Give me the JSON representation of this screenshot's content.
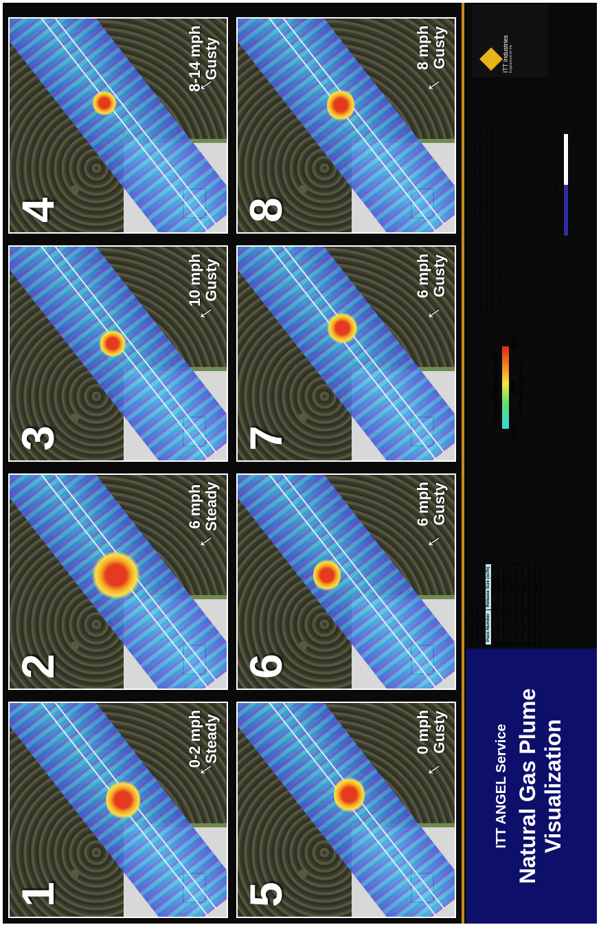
{
  "panels": [
    {
      "number": "1",
      "wind_speed": "0-2 mph",
      "wind_type": "Steady"
    },
    {
      "number": "2",
      "wind_speed": "6 mph",
      "wind_type": "Steady"
    },
    {
      "number": "3",
      "wind_speed": "10 mph",
      "wind_type": "Gusty"
    },
    {
      "number": "4",
      "wind_speed": "8-14 mph",
      "wind_type": "Gusty"
    },
    {
      "number": "5",
      "wind_speed": "0 mph",
      "wind_type": "Gusty"
    },
    {
      "number": "6",
      "wind_speed": "6 mph",
      "wind_type": "Gusty"
    },
    {
      "number": "7",
      "wind_speed": "6 mph",
      "wind_type": "Gusty"
    },
    {
      "number": "8",
      "wind_speed": "8 mph",
      "wind_type": "Gusty"
    }
  ],
  "title": {
    "subtitle": "ITT ANGEL Service",
    "main": "Natural Gas Plume Visualization"
  },
  "flight_info": {
    "speed": "Flight Speed:  150 mph",
    "altitude": "Altitude:  1000' AGL",
    "table": {
      "headers": [
        "Pass Number",
        "Release Size (scfh)"
      ],
      "rows": [
        [
          "1",
          "5600"
        ],
        [
          "2",
          "5600"
        ],
        [
          "3",
          "5600"
        ],
        [
          "4",
          "5600"
        ],
        [
          "5",
          "3720"
        ],
        [
          "6",
          "3720"
        ],
        [
          "7",
          "3720"
        ],
        [
          "8",
          "4480"
        ]
      ]
    }
  },
  "legend": {
    "title": "Concentration Length",
    "ticks": [
      "2000",
      "3000",
      "4000"
    ],
    "unit": "methane (ppm-m)",
    "colors": [
      "#3cd3e6",
      "#5fe06a",
      "#f7e341",
      "#f28a25",
      "#e2231a"
    ]
  },
  "description": "The ANGEL Service DIAL sensor uses LIDAR to detect the possible presence of natural gas. The images above illustrate the sensor's ability to discriminate gas plumes under a variety of wind conditions. ANGEL analysts use a variety of GIS and image-processing tools to generate the final visualizations from the DIAL data. The plume images are then overlaid on digital orthophotos collected at the time of the flight.",
  "scale": {
    "label": "Scale",
    "min": "0",
    "max": "50 meters"
  },
  "logo": {
    "name": "ITT Industries",
    "tagline": "Engineered for life"
  }
}
